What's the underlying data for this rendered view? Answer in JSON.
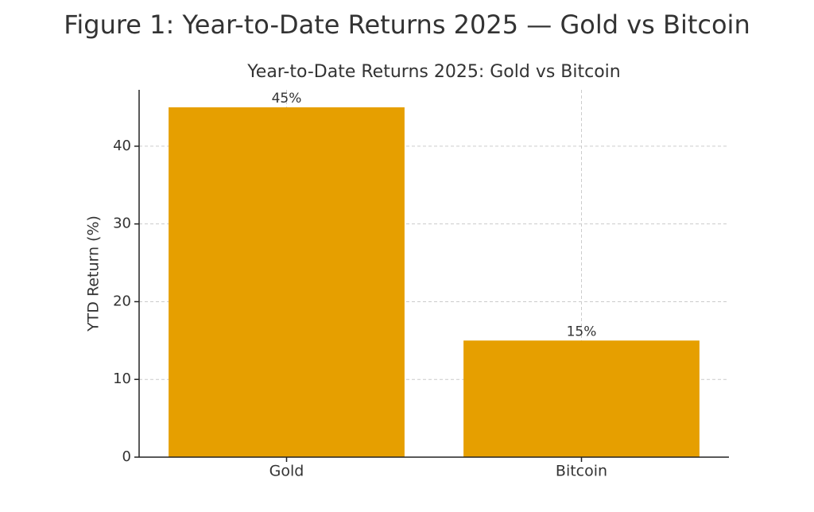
{
  "chart_data": {
    "type": "bar",
    "figure_title": "Figure 1: Year-to-Date Returns 2025 — Gold vs Bitcoin",
    "title": "Year-to-Date Returns 2025: Gold vs Bitcoin",
    "y_label": "YTD Return (%)",
    "categories": [
      "Gold",
      "Bitcoin"
    ],
    "values": [
      45,
      15
    ],
    "value_labels": [
      "45%",
      "15%"
    ],
    "color": "#e69f00",
    "ylim": [
      0,
      47.25
    ],
    "yticks": [
      0,
      10,
      20,
      30,
      40
    ],
    "grid": true
  }
}
